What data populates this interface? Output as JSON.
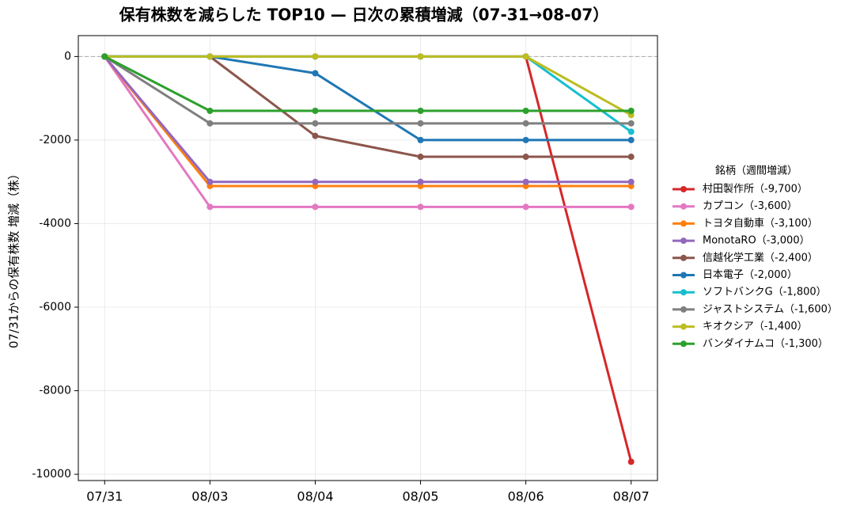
{
  "chart_data": {
    "type": "line",
    "title": "保有株数を減らした TOP10 — 日次の累積増減（07-31→08-07）",
    "y_label": "07/31からの保有株数 増減（株）",
    "legend_title": "銘柄（週間増減）",
    "legend": "right",
    "grid": true,
    "reference_line": 0,
    "categories": [
      "07/31",
      "08/03",
      "08/04",
      "08/05",
      "08/06",
      "08/07"
    ],
    "ylim": [
      -10150,
      500
    ],
    "yticks": [
      0,
      -2000,
      -4000,
      -6000,
      -8000,
      -10000
    ],
    "series": [
      {
        "name": "村田製作所（-9,700）",
        "color": "#d62728",
        "values": [
          0,
          0,
          0,
          0,
          0,
          -9700
        ]
      },
      {
        "name": "カプコン（-3,600）",
        "color": "#e377c2",
        "values": [
          0,
          -3600,
          -3600,
          -3600,
          -3600,
          -3600
        ]
      },
      {
        "name": "トヨタ自動車（-3,100）",
        "color": "#ff7f0e",
        "values": [
          0,
          -3100,
          -3100,
          -3100,
          -3100,
          -3100
        ]
      },
      {
        "name": "MonotaRO（-3,000）",
        "color": "#9467bd",
        "values": [
          0,
          -3000,
          -3000,
          -3000,
          -3000,
          -3000
        ]
      },
      {
        "name": "信越化学工業（-2,400）",
        "color": "#8c564b",
        "values": [
          0,
          0,
          -1900,
          -2400,
          -2400,
          -2400
        ]
      },
      {
        "name": "日本電子（-2,000）",
        "color": "#1f77b4",
        "values": [
          0,
          0,
          -400,
          -2000,
          -2000,
          -2000
        ]
      },
      {
        "name": "ソフトバンクG（-1,800）",
        "color": "#17becf",
        "values": [
          0,
          0,
          0,
          0,
          0,
          -1800
        ]
      },
      {
        "name": "ジャストシステム（-1,600）",
        "color": "#7f7f7f",
        "values": [
          0,
          -1600,
          -1600,
          -1600,
          -1600,
          -1600
        ]
      },
      {
        "name": "キオクシア（-1,400）",
        "color": "#bcbd22",
        "values": [
          0,
          0,
          0,
          0,
          0,
          -1400
        ]
      },
      {
        "name": "バンダイナムコ（-1,300）",
        "color": "#2ca02c",
        "values": [
          0,
          -1300,
          -1300,
          -1300,
          -1300,
          -1300
        ]
      }
    ]
  }
}
